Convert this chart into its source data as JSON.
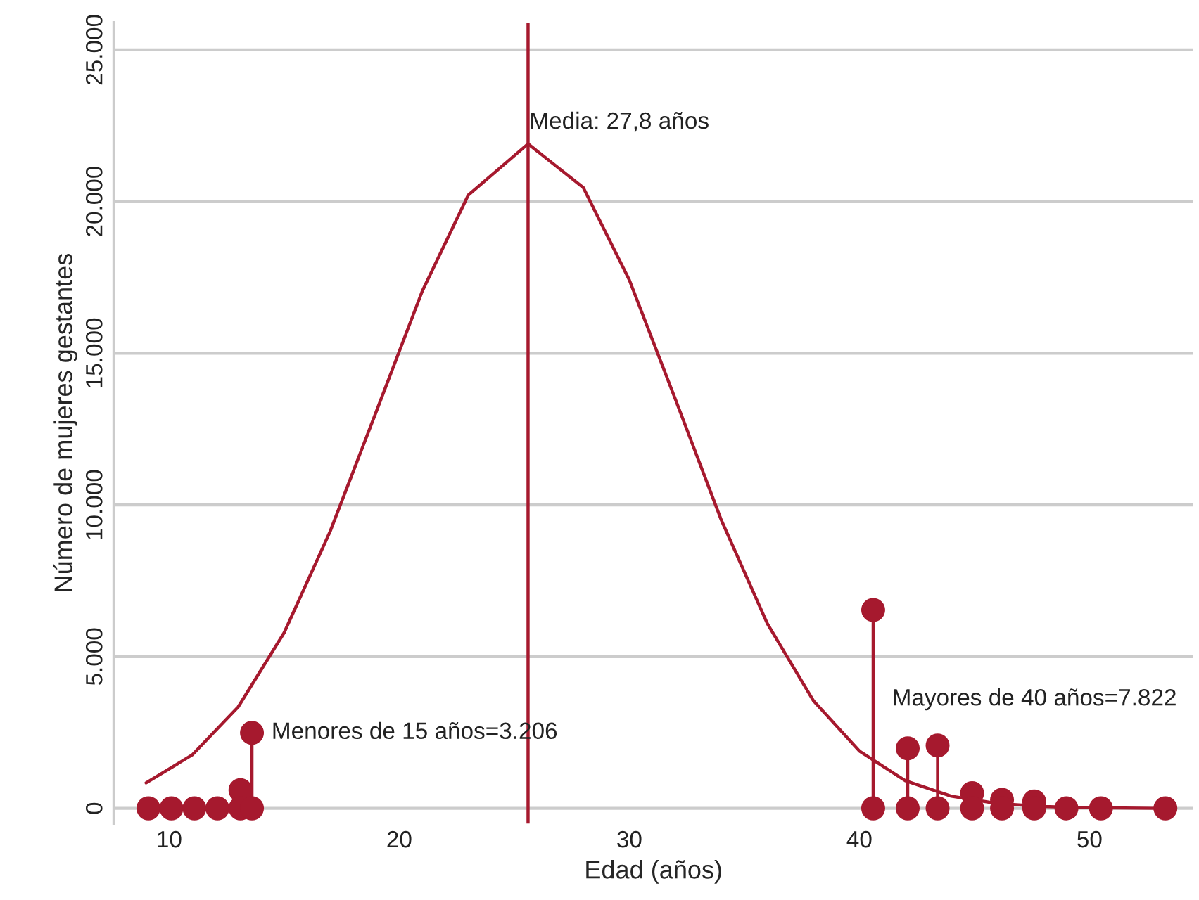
{
  "chart_data": {
    "type": "line",
    "xlabel": "Edad (años)",
    "ylabel": "Número de mujeres gestantes",
    "xlim": [
      7.6,
      54.5
    ],
    "xticks": [
      10,
      20,
      30,
      40,
      50
    ],
    "ylim": [
      -500,
      25900
    ],
    "yticks": [
      {
        "value": 0,
        "label": "0"
      },
      {
        "value": 5000,
        "label": "5.000"
      },
      {
        "value": 10000,
        "label": "10.000"
      },
      {
        "value": 15000,
        "label": "15.000"
      },
      {
        "value": 20000,
        "label": "20.000"
      },
      {
        "value": 25000,
        "label": "25.000"
      }
    ],
    "grid": "y",
    "legend": false,
    "series": [
      {
        "color": "#a6192e",
        "marker": "none",
        "line_style": "solid",
        "x": [
          9,
          11,
          13,
          15,
          17,
          19,
          21,
          23,
          25.6,
          28,
          30,
          32,
          34,
          36,
          38,
          40,
          42,
          44,
          46,
          48,
          50,
          53
        ],
        "values": [
          840,
          1760,
          3340,
          5790,
          9130,
          13070,
          17040,
          20210,
          21900,
          20460,
          17420,
          13490,
          9500,
          6090,
          3550,
          1890,
          910,
          400,
          160,
          60,
          20,
          0
        ]
      },
      {
        "type": "lollipop",
        "color": "#a6192e",
        "marker": "circle",
        "x": [
          13.1,
          13.6,
          40.6,
          42.1,
          43.4,
          44.9,
          46.2,
          47.6
        ],
        "values": [
          600,
          2490,
          6540,
          1980,
          2070,
          500,
          280,
          230
        ]
      },
      {
        "type": "scatter",
        "color": "#a6192e",
        "marker": "circle",
        "x": [
          9.1,
          10.1,
          11.1,
          12.1,
          13.1,
          13.6,
          40.6,
          42.1,
          43.4,
          44.9,
          46.2,
          47.6,
          49.0,
          50.5,
          53.3
        ],
        "values": [
          0,
          0,
          0,
          0,
          0,
          0,
          0,
          0,
          0,
          0,
          0,
          0,
          0,
          0,
          0
        ]
      }
    ],
    "ref_lines": [
      {
        "axis": "x",
        "value": 25.6,
        "color": "#a6192e",
        "line_style": "solid"
      }
    ],
    "annotations": [
      {
        "text": "Menores de 15 años=3.206",
        "x": 13.6,
        "y": 2490
      },
      "Mayores de 40 años=7.822",
      "Media: 27,8 años"
    ]
  }
}
